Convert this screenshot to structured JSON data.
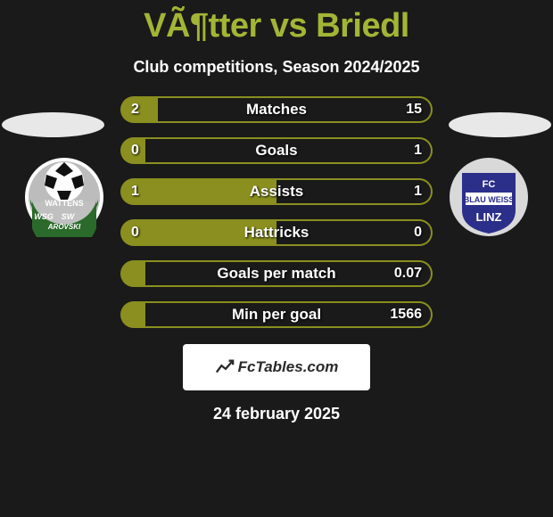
{
  "title": "VÃ¶tter vs Briedl",
  "subtitle": "Club competitions, Season 2024/2025",
  "comparison": {
    "left_color": "#8a8f1f",
    "right_color": "#8a8f1f",
    "rows": [
      {
        "label": "Matches",
        "left": "2",
        "right": "15",
        "left_pct": 12,
        "right_pct": 88
      },
      {
        "label": "Goals",
        "left": "0",
        "right": "1",
        "left_pct": 8,
        "right_pct": 92
      },
      {
        "label": "Assists",
        "left": "1",
        "right": "1",
        "left_pct": 50,
        "right_pct": 50
      },
      {
        "label": "Hattricks",
        "left": "0",
        "right": "0",
        "left_pct": 50,
        "right_pct": 50
      },
      {
        "label": "Goals per match",
        "left": "",
        "right": "0.07",
        "left_pct": 8,
        "right_pct": 92
      },
      {
        "label": "Min per goal",
        "left": "",
        "right": "1566",
        "left_pct": 8,
        "right_pct": 92
      }
    ]
  },
  "brand": "FcTables.com",
  "date": "24 february 2025",
  "left_logo": {
    "ring_outer": "#ffffff",
    "ring_bg": "#c0c0c0",
    "ball_top": "#ffffff",
    "ball_dark": "#111111",
    "text_bg": "#2a6a2a",
    "line1": "WATTENS",
    "line2a": "WSG",
    "line2b": "SW",
    "line3": "AROVSKI"
  },
  "right_logo": {
    "outer": "#d9d9d9",
    "shield": "#2b2f8a",
    "line1": "FC",
    "line2": "BLAU WEISS",
    "line3": "LINZ"
  }
}
